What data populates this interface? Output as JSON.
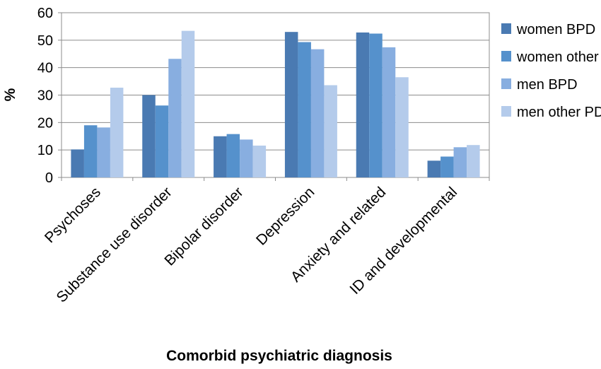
{
  "chart_data": {
    "type": "bar",
    "title": "",
    "xlabel": "Comorbid psychiatric diagnosis",
    "ylabel": "%",
    "ylim": [
      0,
      60
    ],
    "yticks": [
      "0",
      "10",
      "20",
      "30",
      "40",
      "50",
      "60"
    ],
    "grid": true,
    "legend_position": "right",
    "categories": [
      "Psychoses",
      "Substance use disorder",
      "Bipolar disorder",
      "Depression",
      "Anxiety and related",
      "ID and developmental"
    ],
    "series": [
      {
        "name": "women BPD",
        "color": "#4a7ab2",
        "values": [
          10.2,
          30.0,
          15.0,
          53.0,
          52.8,
          6.1
        ]
      },
      {
        "name": "women other PD",
        "color": "#5591cc",
        "values": [
          19.0,
          26.2,
          15.8,
          49.3,
          52.4,
          7.6
        ]
      },
      {
        "name": "men BPD",
        "color": "#88aee0",
        "values": [
          18.2,
          43.2,
          13.8,
          46.7,
          47.4,
          11.0
        ]
      },
      {
        "name": "men other PD",
        "color": "#b4cbeb",
        "values": [
          32.7,
          53.4,
          11.6,
          33.6,
          36.5,
          11.8
        ]
      }
    ]
  }
}
